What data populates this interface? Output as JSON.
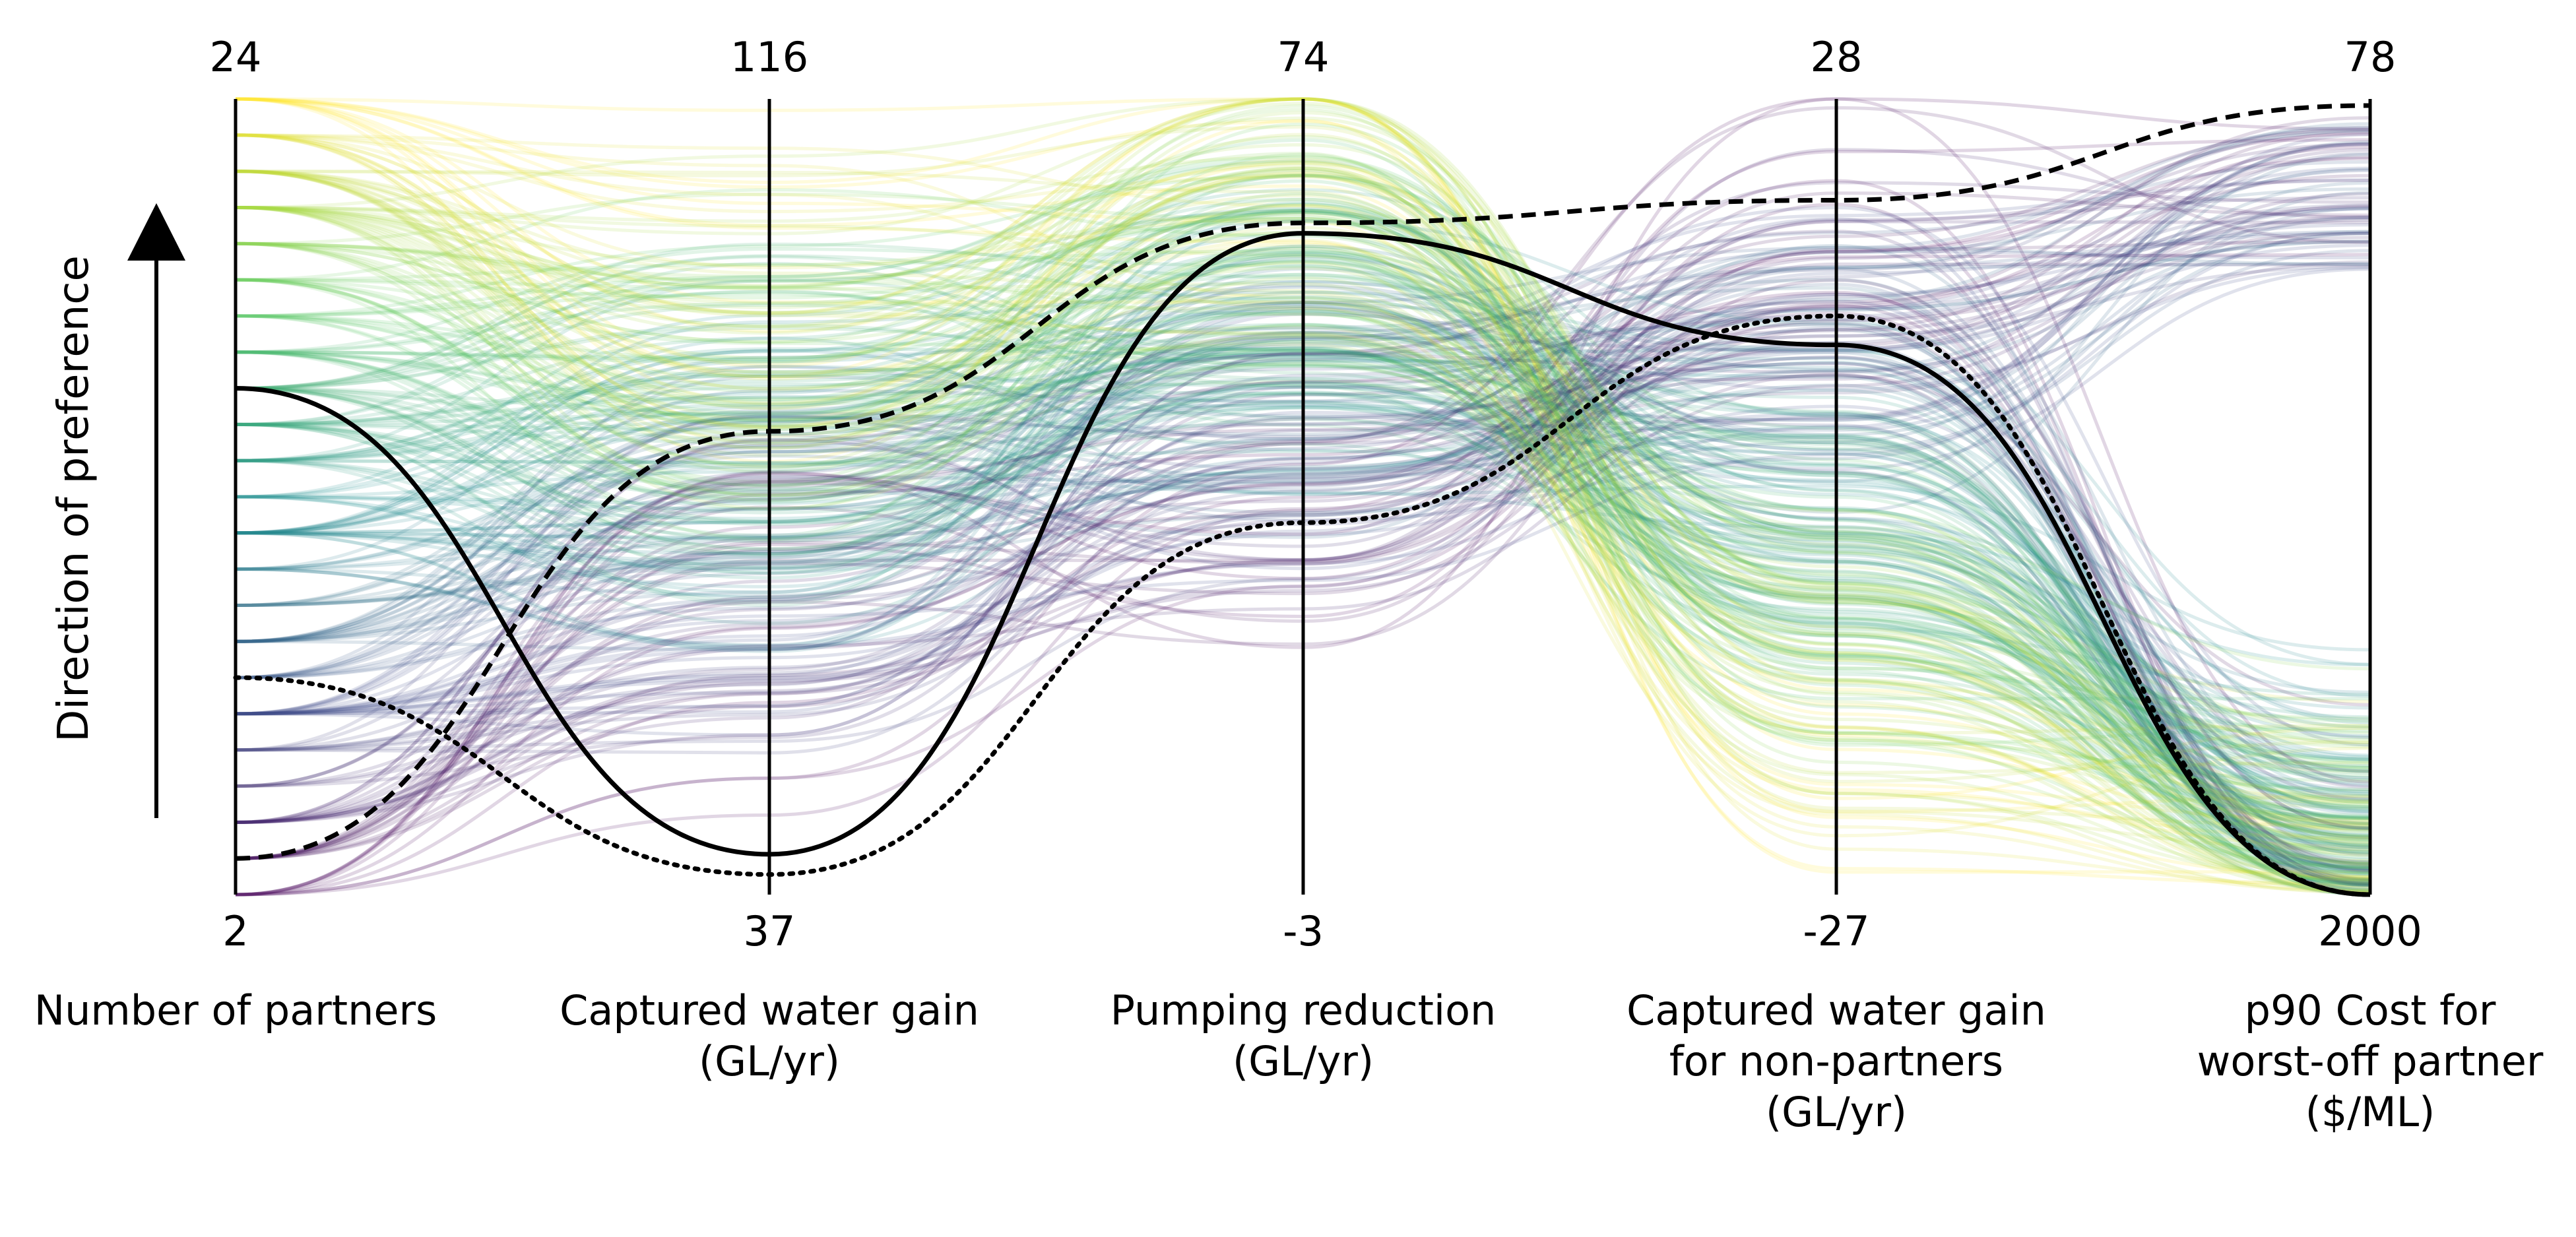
{
  "chart_data": {
    "type": "parallel_coordinates",
    "title": "",
    "preference_label": "Direction of preference",
    "axes": [
      {
        "name": "Number of partners",
        "top": "24",
        "bottom": "2",
        "range": [
          2,
          24
        ],
        "label_lines": [
          "Number of partners"
        ]
      },
      {
        "name": "Captured water gain (GL/yr)",
        "top": "116",
        "bottom": "37",
        "range": [
          37,
          116
        ],
        "label_lines": [
          "Captured water gain",
          "(GL/yr)"
        ]
      },
      {
        "name": "Pumping reduction (GL/yr)",
        "top": "74",
        "bottom": "-3",
        "range": [
          -3,
          74
        ],
        "label_lines": [
          "Pumping reduction",
          "(GL/yr)"
        ]
      },
      {
        "name": "Captured water gain for non-partners (GL/yr)",
        "top": "28",
        "bottom": "-27",
        "range": [
          -27,
          28
        ],
        "label_lines": [
          "Captured water gain",
          "for non-partners",
          "(GL/yr)"
        ]
      },
      {
        "name": "p90 Cost for worst-off partner ($/ML)",
        "top": "78",
        "bottom": "2000",
        "range": [
          2000,
          78
        ],
        "label_lines": [
          "p90 Cost for",
          "worst-off partner",
          "($/ML)"
        ]
      }
    ],
    "colormap": [
      "#440154",
      "#3b528b",
      "#21918c",
      "#5ec962",
      "#fde725"
    ],
    "color_by": "Number of partners",
    "background_solutions_note": "several hundred solutions drawn as faint lines coloured by number of partners",
    "highlighted_solutions": [
      {
        "style": "solid",
        "values": [
          16,
          41,
          61,
          11,
          2000
        ]
      },
      {
        "style": "dashed",
        "values": [
          3,
          83,
          62,
          21,
          94
        ]
      },
      {
        "style": "dotted",
        "values": [
          8,
          39,
          33,
          13,
          2000
        ]
      }
    ]
  }
}
